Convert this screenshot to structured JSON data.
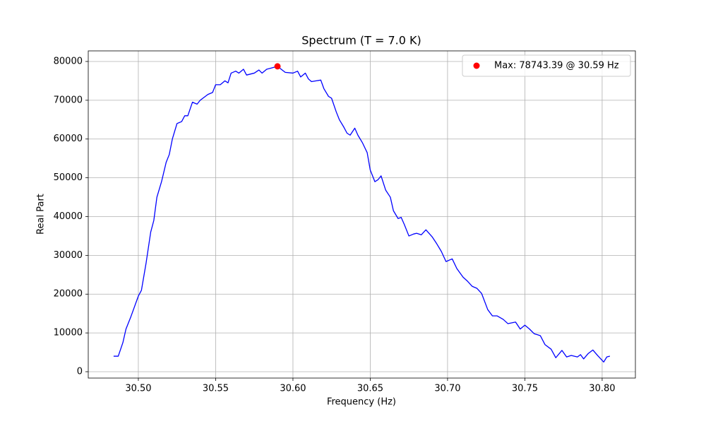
{
  "chart_data": {
    "type": "line",
    "title": "Spectrum (T = 7.0 K)",
    "x_label": "Frequency (Hz)",
    "y_label": "Real Part",
    "xlim": [
      30.4676,
      30.8215
    ],
    "ylim": [
      -1640,
      82730
    ],
    "xticks": [
      {
        "value": 30.5,
        "label": "30.50"
      },
      30.55,
      {
        "value": 30.6,
        "label": "30.60"
      },
      30.65,
      {
        "value": 30.7,
        "label": "30.70"
      },
      30.75,
      {
        "value": 30.8,
        "label": "30.80"
      }
    ],
    "yticks": [
      0,
      10000,
      20000,
      30000,
      40000,
      50000,
      60000,
      70000,
      80000
    ],
    "grid": true,
    "legend": "upper right",
    "series": [
      {
        "kind": "line",
        "color": "#0000ff",
        "x": [
          30.484,
          30.487,
          30.49,
          30.492,
          30.495,
          30.5,
          30.502,
          30.505,
          30.508,
          30.51,
          30.512,
          30.515,
          30.518,
          30.52,
          30.522,
          30.525,
          30.528,
          30.53,
          30.532,
          30.535,
          30.538,
          30.54,
          30.545,
          30.548,
          30.55,
          30.553,
          30.556,
          30.558,
          30.56,
          30.563,
          30.565,
          30.568,
          30.57,
          30.575,
          30.578,
          30.58,
          30.583,
          30.585,
          30.59,
          30.593,
          30.595,
          30.6,
          30.603,
          30.605,
          30.608,
          30.61,
          30.612,
          30.615,
          30.618,
          30.62,
          30.623,
          30.625,
          30.628,
          30.63,
          30.633,
          30.635,
          30.637,
          30.64,
          30.642,
          30.645,
          30.648,
          30.65,
          30.653,
          30.655,
          30.657,
          30.66,
          30.663,
          30.665,
          30.668,
          30.67,
          30.672,
          30.675,
          30.678,
          30.68,
          30.683,
          30.686,
          30.69,
          30.693,
          30.696,
          30.699,
          30.703,
          30.706,
          30.71,
          30.713,
          30.716,
          30.719,
          30.722,
          30.726,
          30.729,
          30.732,
          30.736,
          30.739,
          30.744,
          30.747,
          30.75,
          30.753,
          30.756,
          30.76,
          30.763,
          30.767,
          30.77,
          30.774,
          30.777,
          30.78,
          30.784,
          30.786,
          30.788,
          30.791,
          30.794,
          30.797,
          30.801,
          30.803,
          30.805
        ],
        "values": [
          4000,
          4000,
          7500,
          11000,
          14000,
          19500,
          21000,
          28000,
          36000,
          39000,
          45000,
          49000,
          54000,
          56000,
          60000,
          64000,
          64500,
          66000,
          66000,
          69500,
          69000,
          70000,
          71500,
          72000,
          74000,
          74000,
          75000,
          74500,
          77000,
          77500,
          77000,
          78000,
          76500,
          77000,
          77800,
          77000,
          78000,
          78200,
          78743,
          77800,
          77200,
          77000,
          77500,
          76000,
          77000,
          75500,
          74800,
          75000,
          75200,
          73000,
          71000,
          70500,
          67000,
          65000,
          63000,
          61500,
          61000,
          62800,
          61000,
          59000,
          56500,
          52000,
          49000,
          49500,
          50500,
          46800,
          45000,
          41500,
          39500,
          39800,
          38000,
          35000,
          35500,
          35700,
          35300,
          36600,
          34800,
          33000,
          31000,
          28400,
          29100,
          26600,
          24400,
          23300,
          22000,
          21500,
          20200,
          16000,
          14400,
          14400,
          13500,
          12400,
          12800,
          11000,
          12000,
          11000,
          9800,
          9300,
          7000,
          5800,
          3600,
          5500,
          3800,
          4200,
          3800,
          4400,
          3300,
          4700,
          5600,
          4200,
          2500,
          3800,
          4000
        ]
      },
      {
        "kind": "scatter",
        "name": "Max: 78743.39 @ 30.59 Hz",
        "color": "#ff0000",
        "x": [
          30.59
        ],
        "values": [
          78743.39
        ]
      }
    ]
  }
}
